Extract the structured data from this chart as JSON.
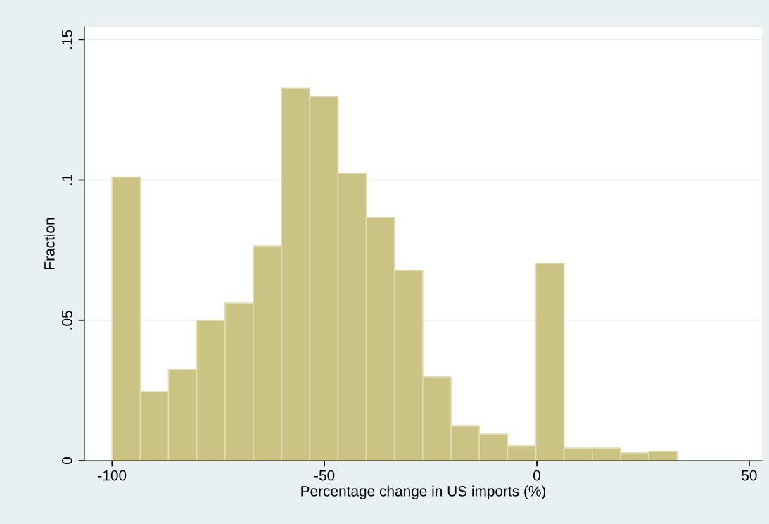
{
  "chart_data": {
    "type": "histogram",
    "xlabel": "Percentage change in US imports (%)",
    "ylabel": "Fraction",
    "bins": [
      -100,
      -93.35,
      -86.7,
      -80.05,
      -73.4,
      -66.75,
      -60.1,
      -53.45,
      -46.8,
      -40.15,
      -33.5,
      -26.85,
      -20.2,
      -13.55,
      -6.9,
      -0.25,
      6.4,
      13.05,
      19.7,
      26.35,
      33.0
    ],
    "values": [
      0.101,
      0.0246,
      0.0324,
      0.0499,
      0.0562,
      0.0765,
      0.1327,
      0.1297,
      0.1024,
      0.0866,
      0.0678,
      0.0299,
      0.0123,
      0.0095,
      0.0053,
      0.0703,
      0.0045,
      0.0045,
      0.0028,
      0.0033
    ],
    "color": "#cbc383",
    "xlim": [
      -106.5,
      53
    ],
    "xticks": [
      {
        "value": -100,
        "label": "-100"
      },
      {
        "value": -50,
        "label": "-50"
      },
      0,
      50
    ],
    "ylim": [
      0,
      0.1546
    ],
    "yticks": [
      0,
      {
        "value": 0.05,
        "label": ".05"
      },
      {
        "value": 0.1,
        "label": ".1"
      },
      {
        "value": 0.15,
        "label": ".15"
      }
    ],
    "grid": "y"
  }
}
